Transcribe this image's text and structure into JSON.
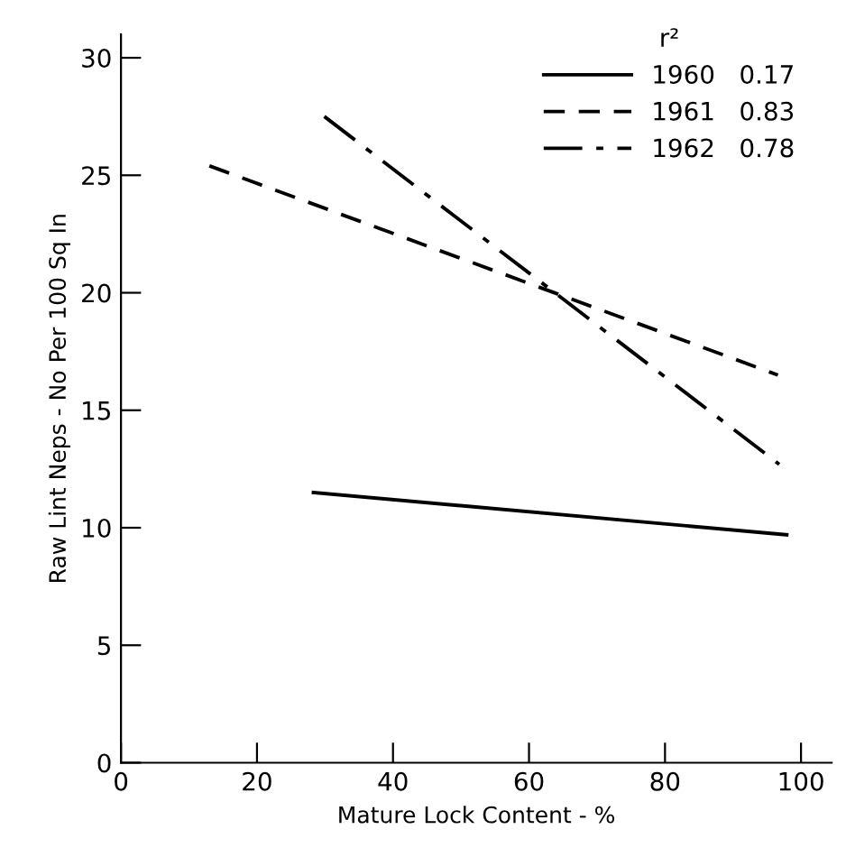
{
  "chart_data": {
    "type": "line",
    "xlabel": "Mature Lock Content - %",
    "ylabel": "Raw Lint Neps - No Per 100 Sq In",
    "legend_title": "r²",
    "legend": "top right",
    "marker": "none",
    "grid": false,
    "series": [
      {
        "name": "1960   0.17",
        "color": "#000000",
        "line_style": "solid",
        "x": [
          28.3,
          97.9
        ],
        "values": [
          11.5,
          9.7
        ]
      },
      {
        "name": "1961   0.83",
        "color": "#000000",
        "line_style": "dashed",
        "x": [
          13,
          96.6
        ],
        "values": [
          25.4,
          16.5
        ]
      },
      {
        "name": "1962   0.78",
        "color": "#000000",
        "line_style": "dashdot",
        "x": [
          29.9,
          96.8
        ],
        "values": [
          27.5,
          12.7
        ]
      }
    ],
    "xlim": [
      0,
      104.5
    ],
    "xticks": [
      0,
      20,
      40,
      60,
      80,
      100
    ],
    "ylim": [
      0,
      31
    ],
    "yticks": [
      0,
      5,
      10,
      15,
      20,
      25,
      30
    ]
  }
}
